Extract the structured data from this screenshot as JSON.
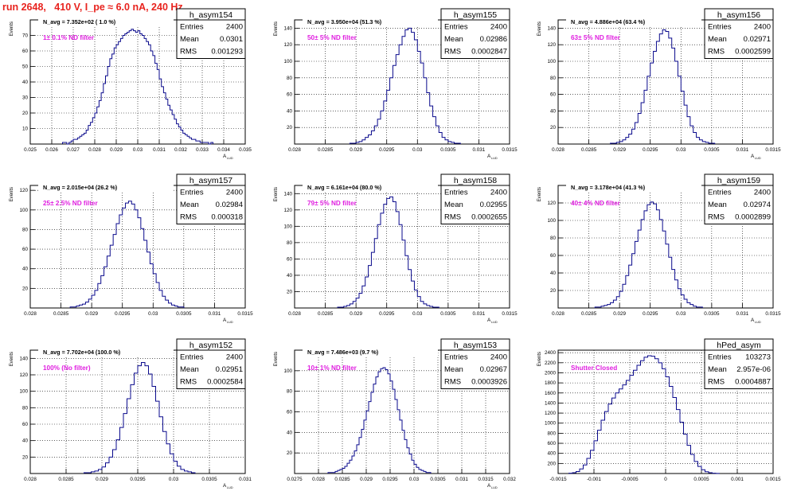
{
  "header": {
    "run_label": "run 2648,   410 V, I_pe ≈ 6.0 nA, 240 Hz"
  },
  "colors": {
    "hist_line": "#0a0a8c",
    "filter_label": "#e020e0",
    "header": "#e8231e"
  },
  "chart_data": [
    {
      "type": "histogram",
      "hist_name": "h_asym154",
      "stats": {
        "entries_label": "Entries",
        "entries": "2400",
        "mean_label": "Mean",
        "mean": "0.0301",
        "rms_label": "RMS",
        "rms": "0.001293"
      },
      "navg_label": "N_avg = 7.352e+02 ( 1.0 %)",
      "filter_label": "1± 0.1% ND filter",
      "ylabel": "Events",
      "xlabel": "A",
      "xlim": [
        0.025,
        0.035
      ],
      "ylim": [
        0,
        80
      ],
      "yticks": [
        10,
        20,
        30,
        40,
        50,
        60,
        70
      ],
      "xticks": [
        0.025,
        0.026,
        0.027,
        0.028,
        0.029,
        0.03,
        0.031,
        0.032,
        0.033,
        0.034,
        0.035
      ],
      "xtick_labels": [
        "0.025",
        "0.026",
        "0.027",
        "0.028",
        "0.029",
        "0.03",
        "0.031",
        "0.032",
        "0.033",
        "0.034",
        "0.035"
      ],
      "bins": {
        "start": 0.0265,
        "width": 0.0001,
        "counts": [
          1,
          1,
          0,
          1,
          2,
          3,
          3,
          4,
          5,
          6,
          7,
          9,
          12,
          14,
          17,
          20,
          24,
          28,
          33,
          39,
          44,
          50,
          55,
          58,
          62,
          64,
          66,
          68,
          70,
          71,
          72,
          73,
          74,
          73,
          72,
          73,
          71,
          70,
          68,
          66,
          64,
          60,
          57,
          52,
          48,
          42,
          37,
          33,
          29,
          25,
          22,
          19,
          16,
          13,
          11,
          9,
          7,
          6,
          5,
          4,
          3,
          3,
          2,
          2,
          1,
          1,
          1,
          1,
          0,
          1
        ]
      }
    },
    {
      "type": "histogram",
      "hist_name": "h_asym155",
      "stats": {
        "entries_label": "Entries",
        "entries": "2400",
        "mean_label": "Mean",
        "mean": "0.02986",
        "rms_label": "RMS",
        "rms": "0.0002847"
      },
      "navg_label": "N_avg = 3.950e+04 (51.3 %)",
      "filter_label": "50± 5% ND filter",
      "ylabel": "Events",
      "xlabel": "A",
      "xlim": [
        0.028,
        0.0315
      ],
      "ylim": [
        0,
        150
      ],
      "yticks": [
        20,
        40,
        60,
        80,
        100,
        120,
        140
      ],
      "xticks": [
        0.028,
        0.0285,
        0.029,
        0.0295,
        0.03,
        0.0305,
        0.031,
        0.0315
      ],
      "xtick_labels": [
        "0.028",
        "0.0285",
        "0.029",
        "0.0295",
        "0.03",
        "0.0305",
        "0.031",
        "0.0315"
      ],
      "bins": {
        "start": 0.0289,
        "width": 5e-05,
        "counts": [
          1,
          1,
          2,
          3,
          5,
          8,
          11,
          16,
          22,
          30,
          40,
          52,
          65,
          80,
          95,
          108,
          120,
          130,
          138,
          140,
          135,
          126,
          112,
          98,
          80,
          62,
          46,
          33,
          22,
          14,
          8,
          5,
          3,
          2,
          1,
          1
        ]
      }
    },
    {
      "type": "histogram",
      "hist_name": "h_asym156",
      "stats": {
        "entries_label": "Entries",
        "entries": "2400",
        "mean_label": "Mean",
        "mean": "0.02971",
        "rms_label": "RMS",
        "rms": "0.0002599"
      },
      "navg_label": "N_avg = 4.886e+04 (63.4 %)",
      "filter_label": "63± 5% ND filter",
      "ylabel": "Events",
      "xlabel": "A",
      "xlim": [
        0.028,
        0.0315
      ],
      "ylim": [
        0,
        150
      ],
      "yticks": [
        20,
        40,
        60,
        80,
        100,
        120,
        140
      ],
      "xticks": [
        0.028,
        0.0285,
        0.029,
        0.0295,
        0.03,
        0.0305,
        0.031,
        0.0315
      ],
      "xtick_labels": [
        "0.028",
        "0.0285",
        "0.029",
        "0.0295",
        "0.03",
        "0.0305",
        "0.031",
        "0.0315"
      ],
      "bins": {
        "start": 0.02885,
        "width": 5e-05,
        "counts": [
          1,
          1,
          2,
          3,
          5,
          8,
          12,
          18,
          26,
          37,
          50,
          65,
          82,
          98,
          112,
          124,
          133,
          138,
          136,
          128,
          116,
          100,
          82,
          64,
          47,
          33,
          22,
          14,
          8,
          5,
          3,
          2,
          1,
          1
        ]
      }
    },
    {
      "type": "histogram",
      "hist_name": "h_asym157",
      "stats": {
        "entries_label": "Entries",
        "entries": "2400",
        "mean_label": "Mean",
        "mean": "0.02984",
        "rms_label": "RMS",
        "rms": "0.000318"
      },
      "navg_label": "N_avg = 2.015e+04 (26.2 %)",
      "filter_label": "25± 2.5% ND filter",
      "ylabel": "Events",
      "xlabel": "A",
      "xlim": [
        0.028,
        0.0315
      ],
      "ylim": [
        0,
        125
      ],
      "yticks": [
        20,
        40,
        60,
        80,
        100,
        120
      ],
      "xticks": [
        0.028,
        0.0285,
        0.029,
        0.0295,
        0.03,
        0.0305,
        0.031,
        0.0315
      ],
      "xtick_labels": [
        "0.028",
        "0.0285",
        "0.029",
        "0.0295",
        "0.03",
        "0.0305",
        "0.031",
        "0.0315"
      ],
      "bins": {
        "start": 0.02865,
        "width": 5e-05,
        "counts": [
          1,
          1,
          2,
          3,
          4,
          6,
          9,
          13,
          18,
          25,
          33,
          42,
          53,
          64,
          75,
          86,
          95,
          102,
          107,
          109,
          106,
          100,
          92,
          81,
          69,
          57,
          45,
          35,
          26,
          18,
          12,
          8,
          5,
          3,
          2,
          1,
          1
        ]
      }
    },
    {
      "type": "histogram",
      "hist_name": "h_asym158",
      "stats": {
        "entries_label": "Entries",
        "entries": "2400",
        "mean_label": "Mean",
        "mean": "0.02955",
        "rms_label": "RMS",
        "rms": "0.0002655"
      },
      "navg_label": "N_avg = 6.161e+04 (80.0 %)",
      "filter_label": "79± 5% ND filter",
      "ylabel": "Events",
      "xlabel": "A",
      "xlim": [
        0.028,
        0.0315
      ],
      "ylim": [
        0,
        150
      ],
      "yticks": [
        20,
        40,
        60,
        80,
        100,
        120,
        140
      ],
      "xticks": [
        0.028,
        0.0285,
        0.029,
        0.0295,
        0.03,
        0.0305,
        0.031,
        0.0315
      ],
      "xtick_labels": [
        "0.028",
        "0.0285",
        "0.029",
        "0.0295",
        "0.03",
        "0.0305",
        "0.031",
        "0.0315"
      ],
      "bins": {
        "start": 0.0287,
        "width": 5e-05,
        "counts": [
          1,
          1,
          2,
          3,
          5,
          8,
          12,
          18,
          27,
          38,
          52,
          68,
          85,
          102,
          116,
          127,
          134,
          136,
          130,
          118,
          102,
          83,
          64,
          47,
          33,
          22,
          14,
          8,
          5,
          3,
          2,
          1,
          1
        ]
      }
    },
    {
      "type": "histogram",
      "hist_name": "h_asym159",
      "stats": {
        "entries_label": "Entries",
        "entries": "2400",
        "mean_label": "Mean",
        "mean": "0.02974",
        "rms_label": "RMS",
        "rms": "0.0002899"
      },
      "navg_label": "N_avg = 3.178e+04 (41.3 %)",
      "filter_label": "40± 4% ND filter",
      "ylabel": "Events",
      "xlabel": "A",
      "xlim": [
        0.028,
        0.0315
      ],
      "ylim": [
        0,
        140
      ],
      "yticks": [
        20,
        40,
        60,
        80,
        100,
        120
      ],
      "xticks": [
        0.028,
        0.0285,
        0.029,
        0.0295,
        0.03,
        0.0305,
        0.031,
        0.0315
      ],
      "xtick_labels": [
        "0.028",
        "0.0285",
        "0.029",
        "0.0295",
        "0.03",
        "0.0305",
        "0.031",
        "0.0315"
      ],
      "bins": {
        "start": 0.0286,
        "width": 5e-05,
        "counts": [
          1,
          1,
          2,
          3,
          4,
          6,
          9,
          13,
          19,
          27,
          37,
          49,
          62,
          76,
          89,
          101,
          111,
          118,
          121,
          119,
          112,
          101,
          88,
          73,
          58,
          44,
          32,
          22,
          15,
          10,
          6,
          4,
          2,
          1,
          1
        ]
      }
    },
    {
      "type": "histogram",
      "hist_name": "h_asym152",
      "stats": {
        "entries_label": "Entries",
        "entries": "2400",
        "mean_label": "Mean",
        "mean": "0.02951",
        "rms_label": "RMS",
        "rms": "0.0002584"
      },
      "navg_label": "N_avg = 7.702e+04 (100.0 %)",
      "filter_label": "100% (No filter)",
      "ylabel": "Events",
      "xlabel": "A",
      "xlim": [
        0.028,
        0.031
      ],
      "ylim": [
        0,
        150
      ],
      "yticks": [
        20,
        40,
        60,
        80,
        100,
        120,
        140
      ],
      "xticks": [
        0.028,
        0.0285,
        0.029,
        0.0295,
        0.03,
        0.0305,
        0.031
      ],
      "xtick_labels": [
        "0.028",
        "0.0285",
        "0.029",
        "0.0295",
        "0.03",
        "0.0305",
        "0.031"
      ],
      "bins": {
        "start": 0.02875,
        "width": 5e-05,
        "counts": [
          1,
          1,
          2,
          3,
          5,
          8,
          13,
          20,
          29,
          41,
          56,
          73,
          91,
          108,
          122,
          131,
          135,
          131,
          121,
          106,
          88,
          69,
          51,
          36,
          24,
          15,
          9,
          5,
          3,
          2,
          1
        ]
      }
    },
    {
      "type": "histogram",
      "hist_name": "h_asym153",
      "stats": {
        "entries_label": "Entries",
        "entries": "2400",
        "mean_label": "Mean",
        "mean": "0.02967",
        "rms_label": "RMS",
        "rms": "0.0003926"
      },
      "navg_label": "N_avg = 7.486e+03 (9.7 %)",
      "filter_label": "10± 1% ND filter",
      "ylabel": "Events",
      "xlabel": "A",
      "xlim": [
        0.0275,
        0.032
      ],
      "ylim": [
        0,
        120
      ],
      "yticks": [
        20,
        40,
        60,
        80,
        100
      ],
      "xticks": [
        0.0275,
        0.028,
        0.0285,
        0.029,
        0.0295,
        0.03,
        0.0305,
        0.031,
        0.0315,
        0.032
      ],
      "xtick_labels": [
        "0.0275",
        "0.028",
        "0.0285",
        "0.029",
        "0.0295",
        "0.03",
        "0.0305",
        "0.031",
        "0.0315",
        "0.032"
      ],
      "bins": {
        "start": 0.0282,
        "width": 5e-05,
        "counts": [
          1,
          1,
          1,
          2,
          3,
          4,
          5,
          7,
          10,
          13,
          17,
          22,
          28,
          35,
          43,
          52,
          61,
          70,
          79,
          87,
          94,
          99,
          102,
          103,
          101,
          97,
          90,
          82,
          72,
          62,
          52,
          42,
          33,
          25,
          19,
          13,
          9,
          6,
          4,
          3,
          2,
          1,
          1
        ]
      }
    },
    {
      "type": "histogram",
      "hist_name": "hPed_asym",
      "stats": {
        "entries_label": "Entries",
        "entries": "103273",
        "mean_label": "Mean",
        "mean": "2.957e-06",
        "rms_label": "RMS",
        "rms": "0.0004887"
      },
      "navg_label": "",
      "filter_label": "Shutter Closed",
      "ylabel": "Events",
      "xlabel": "",
      "xlim": [
        -0.0015,
        0.0015
      ],
      "ylim": [
        0,
        2450
      ],
      "yticks": [
        200,
        400,
        600,
        800,
        1000,
        1200,
        1400,
        1600,
        1800,
        2000,
        2200,
        2400
      ],
      "xticks": [
        -0.0015,
        -0.001,
        -0.0005,
        0,
        0.0005,
        0.001,
        0.0015
      ],
      "xtick_labels": [
        "-0.0015",
        "-0.001",
        "-0.0005",
        "0",
        "0.0005",
        "0.001",
        "0.0015"
      ],
      "bins": {
        "start": -0.00135,
        "width": 5e-05,
        "counts": [
          5,
          15,
          40,
          90,
          170,
          300,
          460,
          650,
          860,
          1060,
          1230,
          1380,
          1500,
          1600,
          1680,
          1760,
          1850,
          1950,
          2050,
          2150,
          2240,
          2310,
          2340,
          2330,
          2280,
          2200,
          2080,
          1920,
          1730,
          1510,
          1270,
          1020,
          780,
          560,
          380,
          240,
          140,
          75,
          35,
          15,
          5,
          2
        ]
      }
    }
  ]
}
